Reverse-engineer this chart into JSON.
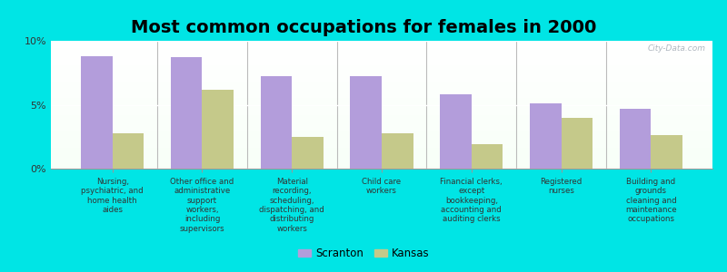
{
  "title": "Most common occupations for females in 2000",
  "categories": [
    "Nursing,\npsychiatric, and\nhome health\naides",
    "Other office and\nadministrative\nsupport\nworkers,\nincluding\nsupervisors",
    "Material\nrecording,\nscheduling,\ndispatching, and\ndistributing\nworkers",
    "Child care\nworkers",
    "Financial clerks,\nexcept\nbookkeeping,\naccounting and\nauditing clerks",
    "Registered\nnurses",
    "Building and\ngrounds\ncleaning and\nmaintenance\noccupations"
  ],
  "scranton_values": [
    8.8,
    8.7,
    7.2,
    7.2,
    5.8,
    5.1,
    4.7
  ],
  "kansas_values": [
    2.8,
    6.2,
    2.5,
    2.8,
    1.9,
    4.0,
    2.6
  ],
  "scranton_color": "#b39ddb",
  "kansas_color": "#c5c98a",
  "background_color": "#00e5e5",
  "ylim": [
    0,
    10
  ],
  "yticks": [
    0,
    5,
    10
  ],
  "ytick_labels": [
    "0%",
    "5%",
    "10%"
  ],
  "legend_labels": [
    "Scranton",
    "Kansas"
  ],
  "title_fontsize": 14,
  "label_fontsize": 6.2,
  "bar_width": 0.35,
  "watermark": "City-Data.com",
  "tick_label_color": "#333333",
  "separator_color": "#bbbbbb"
}
